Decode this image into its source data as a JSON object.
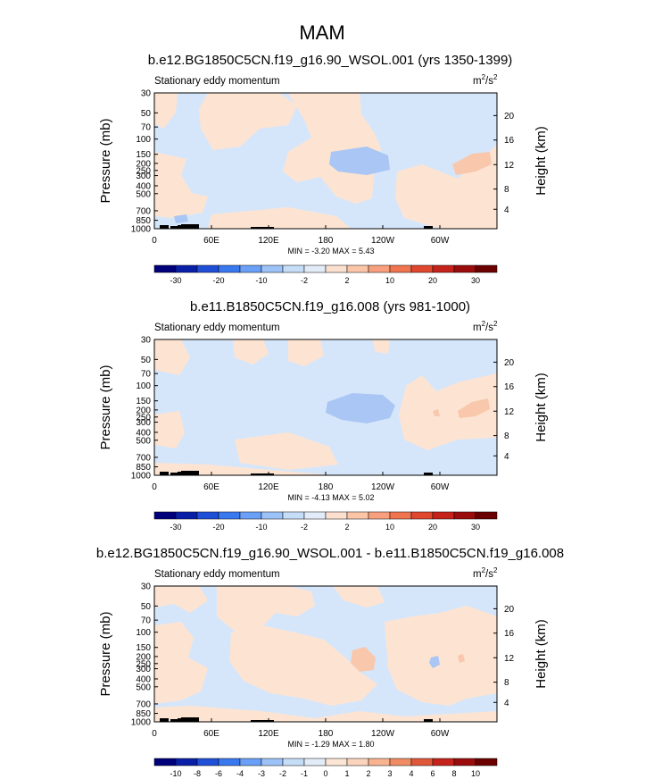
{
  "page_title": "MAM",
  "colors": {
    "cb_default": [
      "#00007a",
      "#0a1fa8",
      "#1f4fd6",
      "#3a78f0",
      "#6aa0f7",
      "#9cc2f7",
      "#c6ddf7",
      "#e2ecf8",
      "#fbe0cf",
      "#fbc6a8",
      "#f8a07e",
      "#f0744f",
      "#e0472f",
      "#c5221b",
      "#9a0c0c",
      "#6b0000"
    ],
    "cb_diff": [
      "#00007a",
      "#0a1fa8",
      "#1f4fd6",
      "#3a78f0",
      "#6aa0f7",
      "#9cc2f7",
      "#c6ddf7",
      "#e2ecf8",
      "#fbe6d6",
      "#fbd4bd",
      "#f8b491",
      "#f08c63",
      "#e0583a",
      "#c5221b",
      "#9a0c0c",
      "#6b0000"
    ],
    "fill_light_blue": "#d6e6fa",
    "fill_light_orange": "#fde4d2",
    "fill_mid_blue": "#aac6f4",
    "fill_mid_orange": "#f8c7ac"
  },
  "chart_data": [
    {
      "type": "heatmap",
      "title": "b.e12.BG1850C5CN.f19_g16.90_WSOL.001 (yrs 1350-1399)",
      "subtitle_left": "Stationary eddy momentum",
      "units": "m²/s²",
      "units_main": "m",
      "units_sup1": "2",
      "units_mid": "/s",
      "units_sup2": "2",
      "ylabel": "Pressure (mb)",
      "ylabel_right": "Height (km)",
      "y_ticks": [
        "30",
        "50",
        "70",
        "100",
        "150",
        "200",
        "250",
        "300",
        "400",
        "500",
        "700",
        "850",
        "1000"
      ],
      "y_ticks_right": [
        "20",
        "16",
        "12",
        "8",
        "4"
      ],
      "x_ticks": [
        "0",
        "60E",
        "120E",
        "180",
        "120W",
        "60W"
      ],
      "min_max_text": "MIN =  -3.20   MAX =    5.43",
      "min": -3.2,
      "max": 5.43,
      "colorbar_labels": [
        "-30",
        "-20",
        "-10",
        "-2",
        "2",
        "10",
        "20",
        "30"
      ],
      "colorbar_palette": "cb_default"
    },
    {
      "type": "heatmap",
      "title": "b.e11.B1850C5CN.f19_g16.008 (yrs 981-1000)",
      "subtitle_left": "Stationary eddy momentum",
      "units": "m²/s²",
      "units_main": "m",
      "units_sup1": "2",
      "units_mid": "/s",
      "units_sup2": "2",
      "ylabel": "Pressure (mb)",
      "ylabel_right": "Height (km)",
      "y_ticks": [
        "30",
        "50",
        "70",
        "100",
        "150",
        "200",
        "250",
        "300",
        "400",
        "500",
        "700",
        "850",
        "1000"
      ],
      "y_ticks_right": [
        "20",
        "16",
        "12",
        "8",
        "4"
      ],
      "x_ticks": [
        "0",
        "60E",
        "120E",
        "180",
        "120W",
        "60W"
      ],
      "min_max_text": "MIN =  -4.13   MAX =    5.02",
      "min": -4.13,
      "max": 5.02,
      "colorbar_labels": [
        "-30",
        "-20",
        "-10",
        "-2",
        "2",
        "10",
        "20",
        "30"
      ],
      "colorbar_palette": "cb_default"
    },
    {
      "type": "heatmap",
      "title": "b.e12.BG1850C5CN.f19_g16.90_WSOL.001 - b.e11.B1850C5CN.f19_g16.008",
      "subtitle_left": "Stationary eddy momentum",
      "units": "m²/s²",
      "units_main": "m",
      "units_sup1": "2",
      "units_mid": "/s",
      "units_sup2": "2",
      "ylabel": "Pressure (mb)",
      "ylabel_right": "Height (km)",
      "y_ticks": [
        "30",
        "50",
        "70",
        "100",
        "150",
        "200",
        "250",
        "300",
        "400",
        "500",
        "700",
        "850",
        "1000"
      ],
      "y_ticks_right": [
        "20",
        "16",
        "12",
        "8",
        "4"
      ],
      "x_ticks": [
        "0",
        "60E",
        "120E",
        "180",
        "120W",
        "60W"
      ],
      "min_max_text": "MIN =  -1.29   MAX =    1.80",
      "min": -1.29,
      "max": 1.8,
      "colorbar_labels": [
        "-10",
        "-8",
        "-6",
        "-4",
        "-3",
        "-2",
        "-1",
        "0",
        "1",
        "2",
        "3",
        "4",
        "6",
        "8",
        "10"
      ],
      "colorbar_palette": "cb_diff"
    }
  ]
}
